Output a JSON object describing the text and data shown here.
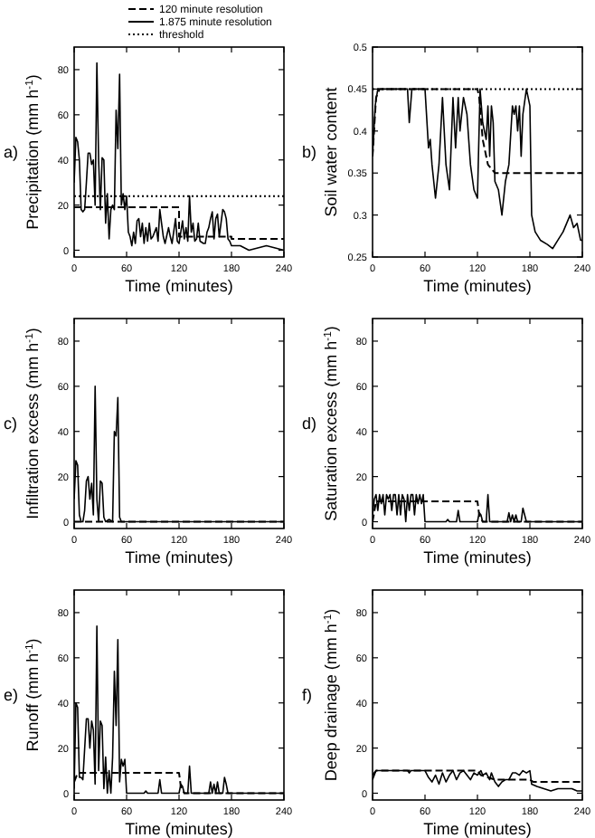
{
  "chart_data": [
    {
      "type": "line",
      "annotations": [
        "a)"
      ],
      "xlabel": "Time (minutes)",
      "ylabel": "Precipitation (mm h$^{-1}$)",
      "xlim": [
        0,
        240
      ],
      "xticks": [
        0,
        60,
        120,
        180,
        240
      ],
      "ylim": [
        -3,
        90
      ],
      "yticks": [
        0,
        20,
        40,
        60,
        80
      ],
      "legend": "top",
      "series": [
        {
          "name": "120 minute resolution",
          "color": "#000000",
          "line_style": "dashed",
          "x": [
            0,
            120,
            120,
            180,
            180,
            240
          ],
          "values": [
            19,
            19,
            6,
            6,
            5,
            5
          ]
        },
        {
          "name": "1.875 minute resolution",
          "color": "#000000",
          "line_style": "solid",
          "x": [
            0,
            2,
            4,
            6,
            8,
            10,
            12,
            14,
            16,
            18,
            20,
            22,
            24,
            26,
            28,
            30,
            32,
            34,
            36,
            38,
            40,
            42,
            44,
            46,
            48,
            50,
            52,
            54,
            56,
            58,
            60,
            62,
            64,
            66,
            68,
            70,
            72,
            74,
            76,
            78,
            80,
            82,
            84,
            86,
            88,
            90,
            94,
            96,
            98,
            100,
            102,
            104,
            108,
            110,
            112,
            116,
            118,
            120,
            124,
            126,
            128,
            130,
            132,
            134,
            136,
            138,
            140,
            142,
            144,
            148,
            150,
            152,
            154,
            156,
            158,
            160,
            162,
            164,
            166,
            168,
            170,
            172,
            174,
            176,
            178,
            180,
            190,
            200,
            210,
            220,
            230,
            240
          ],
          "values": [
            30,
            50,
            48,
            40,
            18,
            17,
            18,
            30,
            43,
            43,
            38,
            40,
            20,
            83,
            40,
            18,
            41,
            40,
            12,
            25,
            5,
            18,
            20,
            18,
            62,
            45,
            78,
            20,
            25,
            18,
            24,
            8,
            6,
            2,
            8,
            3,
            13,
            14,
            6,
            12,
            3,
            10,
            4,
            12,
            5,
            6,
            10,
            4,
            18,
            12,
            6,
            3,
            10,
            6,
            3,
            14,
            4,
            3,
            13,
            5,
            10,
            4,
            24,
            8,
            12,
            4,
            5,
            12,
            4,
            3,
            3,
            8,
            10,
            14,
            17,
            5,
            14,
            16,
            6,
            12,
            18,
            17,
            14,
            5,
            4,
            2,
            2,
            0,
            1,
            2,
            1,
            0
          ]
        },
        {
          "name": "threshold",
          "color": "#000000",
          "line_style": "dotted",
          "x": [
            0,
            240
          ],
          "values": [
            24,
            24
          ]
        }
      ]
    },
    {
      "type": "line",
      "annotations": [
        "b)"
      ],
      "xlabel": "Time (minutes)",
      "ylabel": "Soil water content",
      "xlim": [
        0,
        240
      ],
      "xticks": [
        0,
        60,
        120,
        180,
        240
      ],
      "ylim": [
        0.25,
        0.5
      ],
      "yticks": [
        0.25,
        0.3,
        0.35,
        0.4,
        0.45,
        0.5
      ],
      "series": [
        {
          "color": "#000000",
          "line_style": "dashed",
          "x": [
            0,
            4,
            8,
            120,
            122,
            126,
            132,
            140,
            240
          ],
          "values": [
            0.37,
            0.44,
            0.45,
            0.45,
            0.44,
            0.39,
            0.36,
            0.35,
            0.35
          ]
        },
        {
          "color": "#000000",
          "line_style": "solid",
          "x": [
            0,
            3,
            6,
            40,
            42,
            45,
            60,
            64,
            66,
            68,
            72,
            76,
            80,
            84,
            88,
            92,
            95,
            98,
            100,
            104,
            108,
            112,
            116,
            120,
            123,
            126,
            130,
            132,
            134,
            136,
            138,
            140,
            144,
            148,
            152,
            156,
            160,
            162,
            164,
            166,
            168,
            170,
            172,
            176,
            180,
            182,
            186,
            192,
            200,
            206,
            212,
            218,
            222,
            226,
            230,
            234,
            238,
            240
          ],
          "values": [
            0.37,
            0.43,
            0.45,
            0.45,
            0.41,
            0.45,
            0.45,
            0.38,
            0.39,
            0.36,
            0.32,
            0.36,
            0.44,
            0.36,
            0.33,
            0.44,
            0.38,
            0.44,
            0.4,
            0.44,
            0.42,
            0.36,
            0.33,
            0.32,
            0.45,
            0.41,
            0.39,
            0.43,
            0.37,
            0.43,
            0.41,
            0.34,
            0.33,
            0.3,
            0.34,
            0.36,
            0.43,
            0.42,
            0.43,
            0.4,
            0.43,
            0.37,
            0.42,
            0.45,
            0.43,
            0.3,
            0.28,
            0.27,
            0.265,
            0.26,
            0.27,
            0.28,
            0.29,
            0.3,
            0.285,
            0.29,
            0.27,
            0.27
          ]
        },
        {
          "color": "#000000",
          "line_style": "dotted",
          "x": [
            0,
            240
          ],
          "values": [
            0.45,
            0.45
          ]
        }
      ]
    },
    {
      "type": "line",
      "annotations": [
        "c)"
      ],
      "xlabel": "Time (minutes)",
      "ylabel": "Infiltration excess (mm h$^{-1}$)",
      "xlim": [
        0,
        240
      ],
      "xticks": [
        0,
        60,
        120,
        180,
        240
      ],
      "ylim": [
        -3,
        90
      ],
      "yticks": [
        0,
        20,
        40,
        60,
        80
      ],
      "series": [
        {
          "color": "#000000",
          "line_style": "dashed",
          "x": [
            0,
            240
          ],
          "values": [
            0,
            0
          ]
        },
        {
          "color": "#000000",
          "line_style": "solid",
          "x": [
            0,
            2,
            4,
            6,
            8,
            10,
            12,
            14,
            16,
            18,
            20,
            22,
            24,
            26,
            28,
            30,
            32,
            34,
            36,
            40,
            44,
            46,
            48,
            50,
            52,
            54,
            240
          ],
          "values": [
            10,
            27,
            25,
            3,
            0,
            0,
            5,
            18,
            20,
            10,
            17,
            3,
            60,
            10,
            0,
            18,
            17,
            2,
            0,
            1,
            0,
            40,
            38,
            55,
            2,
            0,
            0
          ]
        }
      ]
    },
    {
      "type": "line",
      "annotations": [
        "d)"
      ],
      "xlabel": "Time (minutes)",
      "ylabel": "Saturation excess (mm h$^{-1}$)",
      "xlim": [
        0,
        240
      ],
      "xticks": [
        0,
        60,
        120,
        180,
        240
      ],
      "ylim": [
        -3,
        90
      ],
      "yticks": [
        0,
        20,
        40,
        60,
        80
      ],
      "series": [
        {
          "color": "#000000",
          "line_style": "dashed",
          "x": [
            0,
            4,
            120,
            122,
            126,
            240
          ],
          "values": [
            0,
            9,
            9,
            3,
            0,
            0
          ]
        },
        {
          "color": "#000000",
          "line_style": "solid",
          "x": [
            0,
            2,
            4,
            6,
            8,
            10,
            12,
            14,
            16,
            18,
            20,
            22,
            24,
            26,
            28,
            30,
            32,
            34,
            36,
            38,
            40,
            42,
            44,
            46,
            48,
            50,
            52,
            54,
            56,
            58,
            60,
            84,
            86,
            88,
            96,
            98,
            100,
            120,
            122,
            124,
            126,
            130,
            132,
            134,
            154,
            156,
            158,
            160,
            162,
            164,
            166,
            170,
            172,
            174,
            176,
            240
          ],
          "values": [
            3,
            10,
            12,
            5,
            12,
            8,
            12,
            3,
            12,
            10,
            12,
            5,
            12,
            12,
            3,
            12,
            3,
            12,
            10,
            0,
            12,
            5,
            12,
            12,
            3,
            12,
            8,
            12,
            8,
            12,
            0,
            0,
            1,
            0,
            0,
            5,
            0,
            0,
            4,
            3,
            0,
            0,
            12,
            0,
            0,
            4,
            0,
            3,
            0,
            3,
            0,
            0,
            6,
            3,
            0,
            0
          ]
        }
      ]
    },
    {
      "type": "line",
      "annotations": [
        "e)"
      ],
      "xlabel": "Time (minutes)",
      "ylabel": "Runoff (mm h$^{-1}$)",
      "xlim": [
        0,
        240
      ],
      "xticks": [
        0,
        60,
        120,
        180,
        240
      ],
      "ylim": [
        -3,
        90
      ],
      "yticks": [
        0,
        20,
        40,
        60,
        80
      ],
      "series": [
        {
          "color": "#000000",
          "line_style": "dashed",
          "x": [
            0,
            4,
            120,
            122,
            126,
            240
          ],
          "values": [
            5,
            9,
            9,
            3,
            0,
            0
          ]
        },
        {
          "color": "#000000",
          "line_style": "solid",
          "x": [
            0,
            2,
            4,
            6,
            8,
            10,
            14,
            16,
            18,
            20,
            22,
            24,
            26,
            28,
            30,
            32,
            34,
            36,
            38,
            40,
            42,
            44,
            46,
            48,
            50,
            52,
            54,
            56,
            58,
            60,
            80,
            82,
            84,
            96,
            98,
            100,
            120,
            122,
            124,
            126,
            130,
            132,
            134,
            154,
            156,
            158,
            160,
            162,
            164,
            166,
            170,
            172,
            174,
            176,
            240
          ],
          "values": [
            2,
            40,
            38,
            7,
            7,
            6,
            33,
            33,
            20,
            32,
            28,
            4,
            74,
            10,
            32,
            30,
            2,
            16,
            0,
            10,
            0,
            16,
            54,
            30,
            68,
            5,
            15,
            12,
            15,
            0,
            0,
            1,
            0,
            0,
            6,
            0,
            0,
            4,
            3,
            0,
            0,
            12,
            0,
            0,
            5,
            0,
            4,
            0,
            5,
            0,
            0,
            7,
            4,
            0,
            0
          ]
        }
      ]
    },
    {
      "type": "line",
      "annotations": [
        "f)"
      ],
      "xlabel": "Time (minutes)",
      "ylabel": "Deep drainage (mm h$^{-1}$)",
      "xlim": [
        0,
        240
      ],
      "xticks": [
        0,
        60,
        120,
        180,
        240
      ],
      "ylim": [
        -3,
        90
      ],
      "yticks": [
        0,
        20,
        40,
        60,
        80
      ],
      "series": [
        {
          "color": "#000000",
          "line_style": "dashed",
          "x": [
            0,
            4,
            120,
            124,
            140,
            180,
            184,
            240
          ],
          "values": [
            8,
            10,
            10,
            8,
            6,
            6,
            5,
            5
          ]
        },
        {
          "color": "#000000",
          "line_style": "solid",
          "x": [
            0,
            4,
            8,
            40,
            42,
            44,
            60,
            64,
            68,
            72,
            76,
            80,
            84,
            88,
            92,
            96,
            100,
            104,
            108,
            112,
            116,
            120,
            124,
            126,
            130,
            134,
            136,
            140,
            144,
            148,
            152,
            156,
            160,
            164,
            168,
            172,
            176,
            180,
            182,
            188,
            196,
            204,
            212,
            220,
            228,
            234,
            240
          ],
          "values": [
            6,
            10,
            10,
            10,
            9,
            10,
            10,
            7,
            5,
            8,
            4,
            9,
            5,
            8,
            10,
            6,
            9,
            10,
            8,
            6,
            9,
            8,
            10,
            8,
            9,
            6,
            9,
            5,
            3,
            5,
            6,
            6,
            9,
            9,
            8,
            10,
            9,
            10,
            4,
            3,
            2,
            1,
            2,
            2,
            2,
            1,
            1
          ]
        }
      ]
    }
  ]
}
